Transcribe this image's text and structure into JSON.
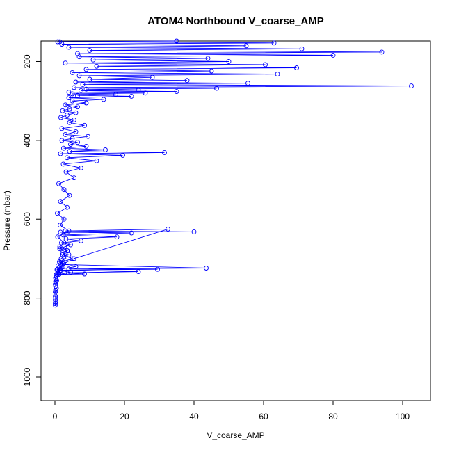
{
  "chart_data": {
    "type": "line",
    "title": "ATOM4 Northbound V_coarse_AMP",
    "xlabel": "V_coarse_AMP",
    "ylabel": "Pressure (mbar)",
    "xlim": [
      -4,
      108
    ],
    "ylim": [
      1060,
      148
    ],
    "y_reversed": true,
    "x_ticks": [
      0,
      20,
      40,
      60,
      80,
      100
    ],
    "y_ticks": [
      200,
      400,
      600,
      800,
      1000
    ],
    "grid": false,
    "legend": "none",
    "color": "#0000ff",
    "marker": "open-circle",
    "series": [
      {
        "x": [
          0.1,
          0.1,
          0.2,
          0.1,
          0.2,
          0.1,
          0.3,
          0.1,
          0.2,
          0.4,
          0.2,
          0.1,
          0.3,
          0.2,
          0.5,
          0.3,
          0.2,
          0.4,
          0.3,
          0.6,
          1.0,
          0.8,
          1.5,
          0.6,
          1.2,
          2.0,
          0.9,
          1.6,
          2.5,
          1.3,
          3.0,
          1.8,
          2.6,
          4.0,
          2.2,
          3.5,
          1.4,
          2.8,
          4.5,
          1.9,
          7.5,
          3.2,
          17.8,
          2.4,
          22.0,
          1.6,
          40.0,
          3.0,
          32.5,
          5.5,
          2.0,
          43.5,
          4.0,
          29.5,
          1.6,
          24.0,
          2.8,
          8.5,
          1.2,
          4.5,
          0.8,
          6.0,
          1.5,
          5.0,
          2.2,
          3.6,
          1.4,
          2.6,
          0.8,
          4.0,
          1.5,
          2.6,
          0.7,
          3.5,
          1.6,
          4.2,
          2.6,
          1.1,
          5.5,
          3.2,
          7.5,
          2.4,
          12.0,
          3.5,
          19.5,
          1.6,
          31.5,
          4.2,
          14.5,
          2.5,
          9.0,
          4.5,
          6.5,
          2.0,
          5.0,
          9.5,
          3.0,
          6.0,
          2.0,
          8.5,
          4.2,
          5.5,
          1.7,
          3.5,
          6.0,
          2.2,
          4.2,
          6.5,
          3.0,
          9.0,
          5.0,
          14.0,
          4.0,
          22.0,
          6.5,
          17.5,
          5.0,
          26.0,
          4.0,
          35.0,
          7.5,
          24.0,
          9.0,
          46.5,
          5.5,
          102.5,
          8.0,
          55.5,
          6.0,
          38.0,
          10.0,
          28.0,
          7.0,
          64.0,
          5.0,
          45.0,
          9.0,
          69.5,
          12.0,
          60.5,
          3.0,
          50.0,
          11.0,
          44.0,
          7.0,
          80.0,
          6.5,
          94.0,
          10.0,
          71.0,
          4.0,
          55.0,
          2.0,
          63.0,
          1.4,
          35.0,
          0.8
        ],
        "y": [
          818,
          814,
          810,
          805,
          800,
          795,
          790,
          785,
          780,
          775,
          770,
          765,
          760,
          758,
          755,
          752,
          749,
          745,
          742,
          740,
          738,
          735,
          731,
          728,
          724,
          722,
          718,
          715,
          712,
          708,
          705,
          700,
          695,
          690,
          685,
          680,
          675,
          670,
          665,
          660,
          655,
          650,
          645,
          640,
          635,
          633,
          632,
          630,
          625,
          700,
          715,
          724,
          726,
          727,
          729,
          733,
          736,
          739,
          740,
          735,
          728,
          720,
          710,
          700,
          690,
          680,
          670,
          660,
          645,
          630,
          615,
          600,
          585,
          570,
          555,
          540,
          525,
          510,
          495,
          480,
          470,
          460,
          452,
          444,
          438,
          434,
          431,
          428,
          424,
          420,
          415,
          410,
          405,
          400,
          395,
          390,
          385,
          378,
          370,
          362,
          355,
          348,
          342,
          336,
          330,
          325,
          320,
          315,
          310,
          305,
          300,
          296,
          292,
          288,
          286,
          284,
          282,
          280,
          278,
          276,
          274,
          272,
          270,
          268,
          266,
          262,
          258,
          255,
          252,
          248,
          245,
          240,
          236,
          232,
          228,
          224,
          220,
          216,
          212,
          208,
          204,
          200,
          196,
          192,
          188,
          184,
          180,
          176,
          172,
          168,
          164,
          160,
          156,
          153,
          150,
          148,
          150
        ]
      }
    ]
  }
}
